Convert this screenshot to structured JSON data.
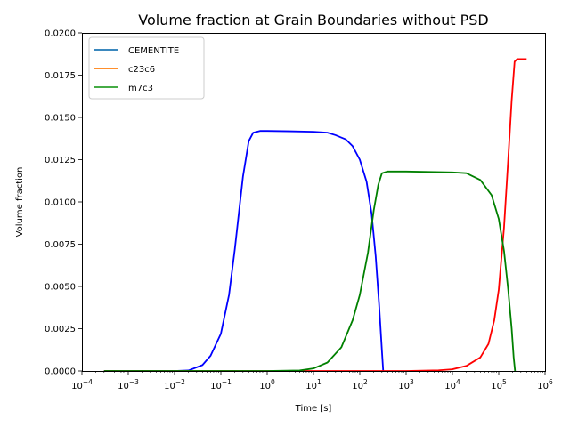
{
  "chart_data": {
    "type": "line",
    "title": "Volume fraction at Grain Boundaries without PSD",
    "xlabel": "Time [s]",
    "ylabel": "Volume fraction",
    "xscale": "log",
    "xlim": [
      0.0001,
      1000000
    ],
    "ylim": [
      0,
      0.02
    ],
    "xticks": [
      {
        "value": 0.0001,
        "base": "10",
        "exp": "−4"
      },
      {
        "value": 0.001,
        "base": "10",
        "exp": "−3"
      },
      {
        "value": 0.01,
        "base": "10",
        "exp": "−2"
      },
      {
        "value": 0.1,
        "base": "10",
        "exp": "−1"
      },
      {
        "value": 1,
        "base": "10",
        "exp": "0"
      },
      {
        "value": 10,
        "base": "10",
        "exp": "1"
      },
      {
        "value": 100,
        "base": "10",
        "exp": "2"
      },
      {
        "value": 1000,
        "base": "10",
        "exp": "3"
      },
      {
        "value": 10000,
        "base": "10",
        "exp": "4"
      },
      {
        "value": 100000,
        "base": "10",
        "exp": "5"
      },
      {
        "value": 1000000,
        "base": "10",
        "exp": "6"
      }
    ],
    "yticks": [
      {
        "value": 0,
        "label": "0.0000"
      },
      {
        "value": 0.0025,
        "label": "0.0025"
      },
      {
        "value": 0.005,
        "label": "0.0050"
      },
      {
        "value": 0.0075,
        "label": "0.0075"
      },
      {
        "value": 0.01,
        "label": "0.0100"
      },
      {
        "value": 0.0125,
        "label": "0.0125"
      },
      {
        "value": 0.015,
        "label": "0.0150"
      },
      {
        "value": 0.0175,
        "label": "0.0175"
      },
      {
        "value": 0.02,
        "label": "0.0200"
      }
    ],
    "grid": false,
    "legend": {
      "position": "top-left",
      "entries": [
        {
          "label": "CEMENTITE",
          "color": "#1f77b4"
        },
        {
          "label": "c23c6",
          "color": "#ff7f0e"
        },
        {
          "label": "m7c3",
          "color": "#2ca02c"
        }
      ]
    },
    "series": [
      {
        "name": "CEMENTITE",
        "color": "#0000ff",
        "points": [
          [
            0.0003,
            0
          ],
          [
            0.01,
            0
          ],
          [
            0.02,
            3e-05
          ],
          [
            0.04,
            0.00035
          ],
          [
            0.06,
            0.0009
          ],
          [
            0.1,
            0.0022
          ],
          [
            0.15,
            0.0045
          ],
          [
            0.2,
            0.0072
          ],
          [
            0.3,
            0.0115
          ],
          [
            0.4,
            0.0136
          ],
          [
            0.5,
            0.0141
          ],
          [
            0.7,
            0.0142
          ],
          [
            1,
            0.0142
          ],
          [
            3,
            0.01418
          ],
          [
            10,
            0.01415
          ],
          [
            20,
            0.0141
          ],
          [
            30,
            0.01395
          ],
          [
            50,
            0.0137
          ],
          [
            70,
            0.0133
          ],
          [
            100,
            0.0125
          ],
          [
            140,
            0.0112
          ],
          [
            180,
            0.0093
          ],
          [
            220,
            0.0068
          ],
          [
            260,
            0.004
          ],
          [
            300,
            0.0012
          ],
          [
            320,
            0
          ]
        ]
      },
      {
        "name": "c23c6",
        "color": "#ff0000",
        "points": [
          [
            0.0003,
            0
          ],
          [
            1000,
            0
          ],
          [
            5000,
            4e-05
          ],
          [
            10000,
            0.0001
          ],
          [
            20000,
            0.0003
          ],
          [
            40000,
            0.0008
          ],
          [
            60000,
            0.0016
          ],
          [
            80000,
            0.003
          ],
          [
            100000,
            0.0048
          ],
          [
            130000,
            0.0085
          ],
          [
            160000,
            0.0125
          ],
          [
            190000,
            0.016
          ],
          [
            220000,
            0.0183
          ],
          [
            250000,
            0.01845
          ],
          [
            400000,
            0.01845
          ]
        ]
      },
      {
        "name": "m7c3",
        "color": "#008000",
        "points": [
          [
            0.0003,
            0
          ],
          [
            1,
            0
          ],
          [
            5,
            3e-05
          ],
          [
            10,
            0.00015
          ],
          [
            20,
            0.0005
          ],
          [
            40,
            0.0014
          ],
          [
            70,
            0.003
          ],
          [
            100,
            0.0045
          ],
          [
            150,
            0.007
          ],
          [
            200,
            0.0095
          ],
          [
            250,
            0.011
          ],
          [
            300,
            0.0117
          ],
          [
            400,
            0.0118
          ],
          [
            1000,
            0.0118
          ],
          [
            10000,
            0.01175
          ],
          [
            20000,
            0.0117
          ],
          [
            40000,
            0.0113
          ],
          [
            70000,
            0.0104
          ],
          [
            100000,
            0.009
          ],
          [
            130000,
            0.0071
          ],
          [
            160000,
            0.0048
          ],
          [
            190000,
            0.0025
          ],
          [
            210000,
            0.0008
          ],
          [
            225000,
            0
          ]
        ]
      }
    ]
  }
}
